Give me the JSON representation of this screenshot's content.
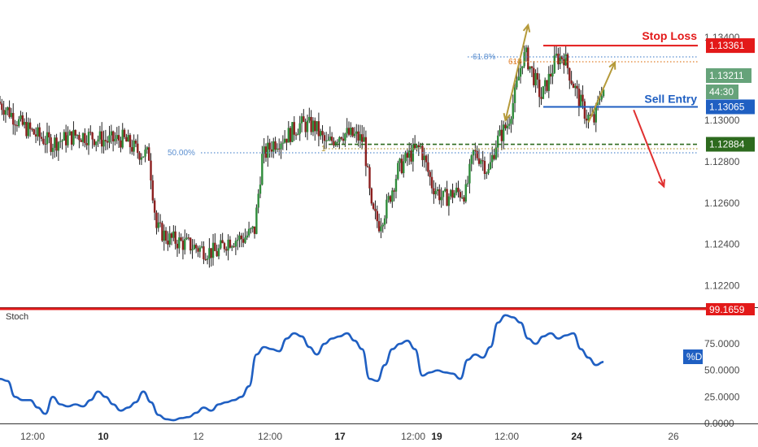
{
  "chart_data": [
    {
      "type": "candlestick",
      "pane": "price",
      "y_axis": {
        "ylim": [
          1.1212,
          1.1355
        ],
        "ticks": [
          "1.12200",
          "1.12400",
          "1.12600",
          "1.12800",
          "1.13000",
          "1.13400"
        ]
      },
      "x_axis": {
        "ticks": [
          "12:00",
          "10",
          "12",
          "12:00",
          "17",
          "12:00",
          "19",
          "12:00",
          "24",
          "26"
        ],
        "day_ticks": [
          "10",
          "17",
          "19",
          "24"
        ]
      },
      "anchor_series": [
        [
          0,
          1.1309
        ],
        [
          3,
          1.1304
        ],
        [
          6,
          1.1298
        ],
        [
          10,
          1.1293
        ],
        [
          14,
          1.1289
        ],
        [
          18,
          1.1291
        ],
        [
          21,
          1.1293
        ],
        [
          25,
          1.1292
        ],
        [
          29,
          1.129
        ],
        [
          33,
          1.1291
        ],
        [
          37,
          1.1285
        ],
        [
          40,
          1.1283
        ],
        [
          42,
          1.1248
        ],
        [
          45,
          1.1243
        ],
        [
          50,
          1.124
        ],
        [
          55,
          1.1237
        ],
        [
          58,
          1.1236
        ],
        [
          61,
          1.1242
        ],
        [
          65,
          1.1243
        ],
        [
          68,
          1.1247
        ],
        [
          70,
          1.1282
        ],
        [
          73,
          1.1289
        ],
        [
          77,
          1.1293
        ],
        [
          80,
          1.1298
        ],
        [
          84,
          1.1297
        ],
        [
          87,
          1.1288
        ],
        [
          91,
          1.1294
        ],
        [
          95,
          1.1292
        ],
        [
          97,
          1.129
        ],
        [
          99,
          1.1256
        ],
        [
          101,
          1.125
        ],
        [
          103,
          1.1258
        ],
        [
          106,
          1.1276
        ],
        [
          109,
          1.1283
        ],
        [
          112,
          1.1287
        ],
        [
          115,
          1.1269
        ],
        [
          118,
          1.1262
        ],
        [
          121,
          1.1265
        ],
        [
          124,
          1.1265
        ],
        [
          126,
          1.1284
        ],
        [
          128,
          1.1282
        ],
        [
          130,
          1.1275
        ],
        [
          132,
          1.1289
        ],
        [
          135,
          1.1298
        ],
        [
          137,
          1.1312
        ],
        [
          139,
          1.133
        ],
        [
          140,
          1.1331
        ],
        [
          142,
          1.1321
        ],
        [
          144,
          1.1311
        ],
        [
          146,
          1.132
        ],
        [
          148,
          1.133
        ],
        [
          150,
          1.1331
        ],
        [
          152,
          1.132
        ],
        [
          154,
          1.131
        ],
        [
          156,
          1.1302
        ],
        [
          158,
          1.13
        ],
        [
          160,
          1.1315
        ]
      ],
      "levels": [
        {
          "name": "Stop Loss",
          "value": "1.13361",
          "color": "#e31919"
        },
        {
          "name": "Sell Entry",
          "value": "1.13065",
          "color": "#1f5fc2"
        },
        {
          "name": "",
          "value": "1.12884",
          "color": "#2d6a1e"
        }
      ],
      "price_tags": [
        {
          "value": "1.13211",
          "color": "#66a37a"
        },
        {
          "value": "44:30",
          "color": "#66a37a"
        }
      ],
      "fib_labels": [
        {
          "text": "50.00%",
          "color": "#5b8fd0"
        },
        {
          "text": "61.8%",
          "color": "#5b8fd0"
        },
        {
          "text": "618",
          "color": "#e07f2a"
        },
        {
          "text": "1",
          "color": "#b59a3a"
        }
      ],
      "arrows": [
        {
          "from": [
            134,
            1.13
          ],
          "to": [
            140,
            1.1346
          ],
          "color": "#b59a3a",
          "double": true
        },
        {
          "from": [
            156,
            1.1299
          ],
          "to": [
            163,
            1.1328
          ],
          "color": "#b59a3a",
          "double": false
        },
        {
          "from": [
            168,
            1.1305
          ],
          "to": [
            176,
            1.1268
          ],
          "color": "#e03030",
          "double": false
        }
      ]
    },
    {
      "type": "line",
      "pane": "indicator",
      "title": "Stoch",
      "y_axis": {
        "ylim": [
          0,
          108
        ],
        "ticks": [
          "0.0000",
          "25.0000",
          "50.0000",
          "75.0000"
        ]
      },
      "tags": [
        {
          "value": "99.1659",
          "color": "#e31919"
        },
        {
          "value": "%D",
          "color": "#1f5fc2"
        }
      ],
      "series": [
        {
          "color": "#1f5fc2",
          "values": [
            [
              0,
              42
            ],
            [
              2,
              40
            ],
            [
              4,
              25
            ],
            [
              6,
              22
            ],
            [
              8,
              22
            ],
            [
              10,
              15
            ],
            [
              12,
              9
            ],
            [
              14,
              25
            ],
            [
              16,
              18
            ],
            [
              18,
              16
            ],
            [
              20,
              18
            ],
            [
              22,
              16
            ],
            [
              24,
              22
            ],
            [
              26,
              30
            ],
            [
              28,
              25
            ],
            [
              30,
              18
            ],
            [
              32,
              12
            ],
            [
              34,
              15
            ],
            [
              36,
              20
            ],
            [
              38,
              30
            ],
            [
              40,
              20
            ],
            [
              42,
              8
            ],
            [
              44,
              4
            ],
            [
              46,
              3
            ],
            [
              48,
              5
            ],
            [
              50,
              6
            ],
            [
              52,
              10
            ],
            [
              54,
              15
            ],
            [
              56,
              12
            ],
            [
              58,
              18
            ],
            [
              60,
              20
            ],
            [
              62,
              22
            ],
            [
              64,
              25
            ],
            [
              66,
              35
            ],
            [
              68,
              65
            ],
            [
              70,
              72
            ],
            [
              72,
              70
            ],
            [
              74,
              68
            ],
            [
              76,
              80
            ],
            [
              78,
              85
            ],
            [
              80,
              82
            ],
            [
              82,
              72
            ],
            [
              84,
              65
            ],
            [
              86,
              75
            ],
            [
              88,
              80
            ],
            [
              90,
              82
            ],
            [
              92,
              85
            ],
            [
              94,
              78
            ],
            [
              96,
              70
            ],
            [
              98,
              42
            ],
            [
              100,
              40
            ],
            [
              102,
              55
            ],
            [
              104,
              70
            ],
            [
              106,
              75
            ],
            [
              108,
              78
            ],
            [
              110,
              70
            ],
            [
              112,
              45
            ],
            [
              114,
              48
            ],
            [
              116,
              50
            ],
            [
              118,
              48
            ],
            [
              120,
              47
            ],
            [
              122,
              42
            ],
            [
              124,
              60
            ],
            [
              126,
              65
            ],
            [
              128,
              62
            ],
            [
              130,
              72
            ],
            [
              132,
              95
            ],
            [
              134,
              102
            ],
            [
              136,
              100
            ],
            [
              138,
              95
            ],
            [
              140,
              80
            ],
            [
              142,
              75
            ],
            [
              144,
              82
            ],
            [
              146,
              85
            ],
            [
              148,
              80
            ],
            [
              150,
              83
            ],
            [
              152,
              85
            ],
            [
              154,
              70
            ],
            [
              156,
              62
            ],
            [
              158,
              55
            ],
            [
              160,
              58
            ]
          ]
        }
      ]
    }
  ]
}
